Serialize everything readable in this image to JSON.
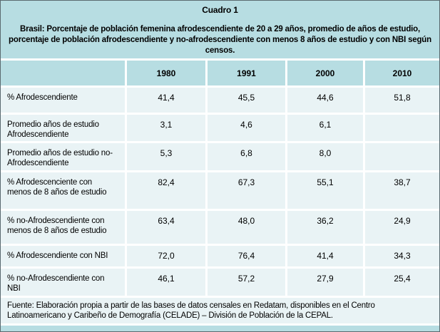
{
  "title": "Cuadro 1",
  "subtitle": "Brasil: Porcentaje de población femenina afrodescendiente de 20 a 29 años, promedio de años de estudio, porcentaje de población afrodescendiente y no-afrodescendiente con menos 8 años de estudio y con NBI según censos.",
  "table": {
    "column_headers": [
      "1980",
      "1991",
      "2000",
      "2010"
    ],
    "rows": [
      {
        "label": "% Afrodescendiente",
        "values": [
          "41,4",
          "45,5",
          "44,6",
          "51,8"
        ]
      },
      {
        "label": "Promedio años de estudio Afrodescendiente",
        "values": [
          "3,1",
          "4,6",
          "6,1",
          ""
        ]
      },
      {
        "label": "Promedio años de estudio no-Afrodescendiente",
        "values": [
          "5,3",
          "6,8",
          "8,0",
          ""
        ]
      },
      {
        "label": "% Afrodescenciente con menos de 8 años de estudio",
        "values": [
          "82,4",
          "67,3",
          "55,1",
          "38,7"
        ]
      },
      {
        "label": "% no-Afrodescendiente con menos de 8 años de estudio",
        "values": [
          "63,4",
          "48,0",
          "36,2",
          "24,9"
        ]
      },
      {
        "label": "% Afrodescendiente con NBI",
        "values": [
          "72,0",
          "76,4",
          "41,4",
          "34,3"
        ]
      },
      {
        "label": "% no-Afrodescendiente con NBI",
        "values": [
          "46,1",
          "57,2",
          "27,9",
          "25,4"
        ]
      }
    ]
  },
  "source": "Fuente: Elaboración propia a partir de las bases de datos censales en Redatam, disponibles en el Centro Latinoamericano y Caribeño de Demografía (CELADE) – División de Población de la CEPAL.",
  "colors": {
    "background_teal": "#b7dde2",
    "cell_light": "#e9f3f5",
    "separator_white": "#ffffff",
    "text": "#000000",
    "outer_border": "#5b6a70"
  },
  "chart_data": {
    "type": "table",
    "title": "Cuadro 1 — Brasil: Porcentaje de población femenina afrodescendiente de 20 a 29 años, promedio de años de estudio, porcentaje de población afrodescendiente y no-afrodescendiente con menos 8 años de estudio y con NBI según censos.",
    "categories": [
      "1980",
      "1991",
      "2000",
      "2010"
    ],
    "series": [
      {
        "name": "% Afrodescendiente",
        "values": [
          41.4,
          45.5,
          44.6,
          51.8
        ]
      },
      {
        "name": "Promedio años de estudio Afrodescendiente",
        "values": [
          3.1,
          4.6,
          6.1,
          null
        ]
      },
      {
        "name": "Promedio años de estudio no-Afrodescendiente",
        "values": [
          5.3,
          6.8,
          8.0,
          null
        ]
      },
      {
        "name": "% Afrodescenciente con menos de 8 años de estudio",
        "values": [
          82.4,
          67.3,
          55.1,
          38.7
        ]
      },
      {
        "name": "% no-Afrodescendiente con menos de 8 años de estudio",
        "values": [
          63.4,
          48.0,
          36.2,
          24.9
        ]
      },
      {
        "name": "% Afrodescendiente con NBI",
        "values": [
          72.0,
          76.4,
          41.4,
          34.3
        ]
      },
      {
        "name": "% no-Afrodescendiente con NBI",
        "values": [
          46.1,
          57.2,
          27.9,
          25.4
        ]
      }
    ],
    "notes": "Fuente: Elaboración propia a partir de las bases de datos censales en Redatam, disponibles en el Centro Latinoamericano y Caribeño de Demografía (CELADE) – División de Población de la CEPAL."
  }
}
